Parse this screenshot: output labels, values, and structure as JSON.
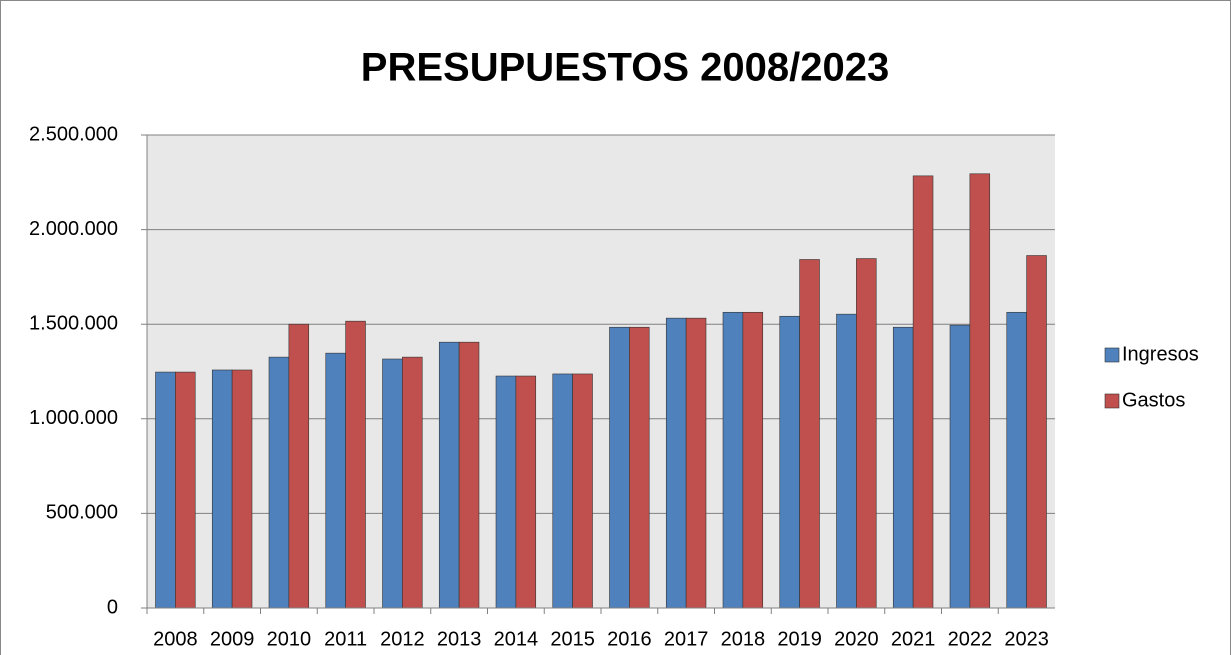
{
  "chart_data": {
    "type": "bar",
    "title": "PRESUPUESTOS 2008/2023",
    "categories": [
      "2008",
      "2009",
      "2010",
      "2011",
      "2012",
      "2013",
      "2014",
      "2015",
      "2016",
      "2017",
      "2018",
      "2019",
      "2020",
      "2021",
      "2022",
      "2023"
    ],
    "series": [
      {
        "name": "Ingresos",
        "color": "#4f81bd",
        "values": [
          1247000,
          1258000,
          1326000,
          1347000,
          1316000,
          1405000,
          1226000,
          1237000,
          1484000,
          1532000,
          1563000,
          1542000,
          1553000,
          1484000,
          1495000,
          1563000
        ]
      },
      {
        "name": "Gastos",
        "color": "#c0504d",
        "values": [
          1247000,
          1258000,
          1500000,
          1516000,
          1326000,
          1405000,
          1226000,
          1237000,
          1484000,
          1532000,
          1563000,
          1842000,
          1847000,
          2284000,
          2295000,
          1863000
        ]
      }
    ],
    "ylim": [
      0,
      2500000
    ],
    "yticks": [
      0,
      {
        "value": 500000,
        "label": "500.000"
      },
      {
        "value": 1000000,
        "label": "1.000.000"
      },
      {
        "value": 1500000,
        "label": "1.500.000"
      },
      {
        "value": 2000000,
        "label": "2.000.000"
      },
      {
        "value": 2500000,
        "label": "2.500.000"
      }
    ],
    "grid": true,
    "legend": "right"
  }
}
